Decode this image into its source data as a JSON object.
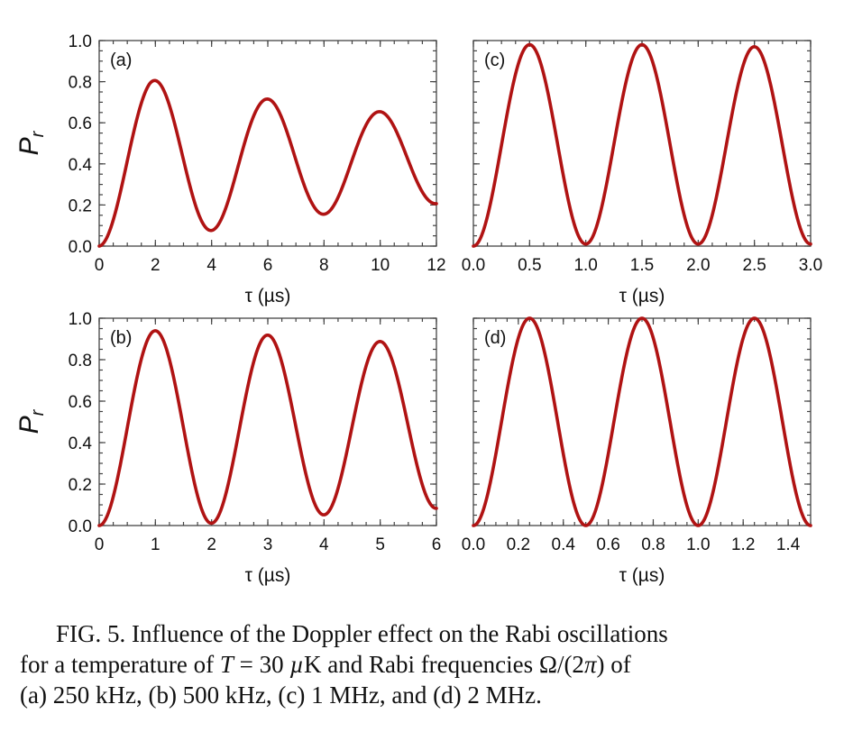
{
  "chart_data": [
    {
      "type": "line",
      "panel_label": "(a)",
      "xlabel": "τ (µs)",
      "ylabel": "P",
      "ylabel_sub": "r",
      "xlim": [
        0,
        12
      ],
      "ylim": [
        0,
        1
      ],
      "xticks": [
        "0",
        "2",
        "4",
        "6",
        "8",
        "10",
        "12"
      ],
      "yticks": [
        "0.0",
        "0.2",
        "0.4",
        "0.6",
        "0.8",
        "1.0"
      ],
      "rabi_frequency_mhz": 0.25,
      "color": "#b01313",
      "series": [
        {
          "x": [
            0,
            1.8,
            3.7,
            5.7,
            7.6,
            9.6,
            11.5,
            12
          ],
          "y": [
            0,
            0.81,
            0.07,
            0.72,
            0.15,
            0.66,
            0.2,
            0.25
          ]
        }
      ]
    },
    {
      "type": "line",
      "panel_label": "(c)",
      "xlabel": "τ (µs)",
      "ylabel": "",
      "ylabel_sub": "",
      "xlim": [
        0,
        3
      ],
      "ylim": [
        0,
        1
      ],
      "xticks": [
        "0.0",
        "0.5",
        "1.0",
        "1.5",
        "2.0",
        "2.5",
        "3.0"
      ],
      "yticks": [],
      "rabi_frequency_mhz": 1,
      "color": "#b01313",
      "series": [
        {
          "x": [
            0,
            0.5,
            1.0,
            1.5,
            2.0,
            2.5,
            3.0
          ],
          "y": [
            0,
            0.98,
            0.01,
            0.98,
            0.01,
            0.97,
            0.02
          ]
        }
      ]
    },
    {
      "type": "line",
      "panel_label": "(b)",
      "xlabel": "τ (µs)",
      "ylabel": "P",
      "ylabel_sub": "r",
      "xlim": [
        0,
        6
      ],
      "ylim": [
        0,
        1
      ],
      "xticks": [
        "0",
        "1",
        "2",
        "3",
        "4",
        "5",
        "6"
      ],
      "yticks": [
        "0.0",
        "0.2",
        "0.4",
        "0.6",
        "0.8",
        "1.0"
      ],
      "rabi_frequency_mhz": 0.5,
      "color": "#b01313",
      "series": [
        {
          "x": [
            0,
            0.95,
            1.95,
            2.9,
            3.9,
            4.85,
            5.8,
            6
          ],
          "y": [
            0,
            0.94,
            0.01,
            0.92,
            0.05,
            0.89,
            0.08,
            0.11
          ]
        }
      ]
    },
    {
      "type": "line",
      "panel_label": "(d)",
      "xlabel": "τ (µs)",
      "ylabel": "",
      "ylabel_sub": "",
      "xlim": [
        0,
        1.5
      ],
      "ylim": [
        0,
        1
      ],
      "xticks": [
        "0.0",
        "0.2",
        "0.4",
        "0.6",
        "0.8",
        "1.0",
        "1.2",
        "1.4"
      ],
      "yticks": [],
      "rabi_frequency_mhz": 2,
      "color": "#b01313",
      "series": [
        {
          "x": [
            0,
            0.25,
            0.5,
            0.75,
            1.0,
            1.25,
            1.5
          ],
          "y": [
            0,
            1.0,
            0.0,
            1.0,
            0.0,
            1.0,
            0.0
          ]
        }
      ]
    }
  ],
  "caption": {
    "line1": "FIG. 5. Influence of the Doppler effect on the Rabi oscillations",
    "line2_a": "for a temperature of ",
    "line2_T": "T",
    "line2_eq": " = 30 ",
    "line2_mu": "µ",
    "line2_b": "K and Rabi frequencies Ω/(2",
    "line2_pi": "π",
    "line2_c": ") of",
    "line3": "(a) 250 kHz, (b) 500 kHz, (c) 1 MHz, and (d) 2 MHz."
  }
}
